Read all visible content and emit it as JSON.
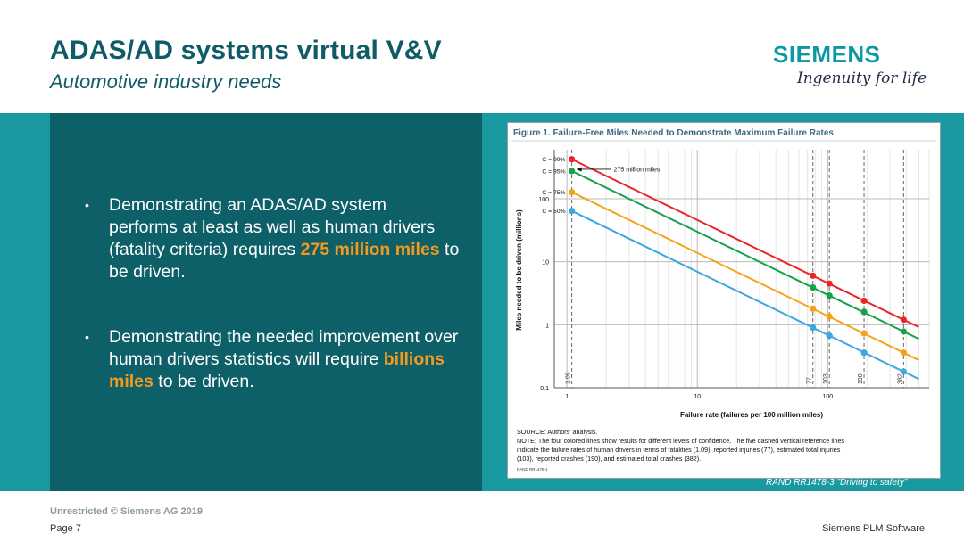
{
  "slide": {
    "title": "ADAS/AD systems virtual V&V",
    "subtitle": "Automotive industry needs"
  },
  "branding": {
    "logo_text": "SIEMENS",
    "tagline": "Ingenuity for life"
  },
  "bullets": [
    {
      "before": "Demonstrating an ADAS/AD system performs at least as well as human drivers (fatality criteria) requires ",
      "highlight": "275 million miles",
      "after": " to be driven."
    },
    {
      "before": "Demonstrating the needed improvement over human drivers statistics will require ",
      "highlight": "billions miles",
      "after": " to be driven."
    }
  ],
  "figure": {
    "caption": "RAND RR1478-3 \"Driving to safety\"",
    "source_note": "SOURCE: Authors' analysis.",
    "note": [
      "NOTE: The four colored lines show results for different levels of confidence. The five dashed vertical reference lines",
      "indicate the failure rates of human drivers in terms of fatalities (1.09), reported injuries (77), estimated total injuries",
      "(103), reported crashes (190), and estimated total crashes (382)."
    ],
    "figure_id": "RAND RR1478-1"
  },
  "footer": {
    "classification": "Unrestricted © Siemens AG 2019",
    "page": "Page 7",
    "company": "Siemens PLM Software"
  },
  "colors": {
    "title": "#0f5b67",
    "panel": "#0d5f68",
    "band": "#1a9aa0",
    "highlight": "#f39a1e"
  },
  "chart_data": {
    "type": "line",
    "title": "Figure 1. Failure-Free Miles Needed to Demonstrate Maximum Failure Rates",
    "xlabel": "Failure rate (failures per 100 million miles)",
    "ylabel": "Miles needed to be driven (millions)",
    "x_scale": "log",
    "y_scale": "log",
    "xlim": [
      0.8,
      600
    ],
    "ylim": [
      0.1,
      600
    ],
    "x_ticks": [
      1,
      10,
      100
    ],
    "y_ticks": [
      0.1,
      1,
      10,
      100
    ],
    "x": [
      1.09,
      77,
      103,
      190,
      382
    ],
    "series": [
      {
        "name": "C = 99%",
        "color": "#e8272a",
        "values": [
          423,
          6,
          4.5,
          2.4,
          1.2
        ]
      },
      {
        "name": "C = 95%",
        "color": "#17a24a",
        "values": [
          275,
          3.9,
          2.9,
          1.6,
          0.78
        ]
      },
      {
        "name": "C = 75%",
        "color": "#f5a21b",
        "values": [
          127,
          1.8,
          1.35,
          0.73,
          0.36
        ]
      },
      {
        "name": "C = 50%",
        "color": "#3aa8dc",
        "values": [
          64,
          0.9,
          0.67,
          0.36,
          0.18
        ]
      }
    ],
    "reference_lines": [
      {
        "x": 1.09,
        "label": "1.09"
      },
      {
        "x": 77,
        "label": "77"
      },
      {
        "x": 103,
        "label": "103"
      },
      {
        "x": 190,
        "label": "190"
      },
      {
        "x": 382,
        "label": "382"
      }
    ],
    "annotation": "275 million miles",
    "grid": true
  }
}
